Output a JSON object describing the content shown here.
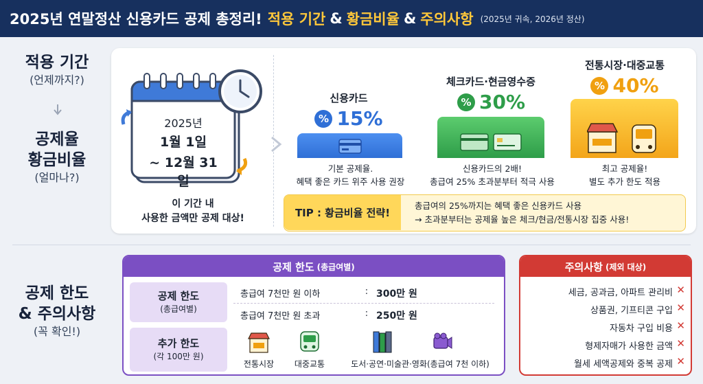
{
  "header": {
    "title": "2025년 연말정산 신용카드 공제 총정리!",
    "highlight_1": "적용 기간",
    "amp": "&",
    "highlight_2": "황금비율",
    "highlight_3": "주의사항",
    "subtitle": "(2025년 귀속, 2026년 정산)"
  },
  "left_labels": {
    "period_title": "적용 기간",
    "period_sub": "(언제까지?)",
    "rate_title_1": "공제율",
    "rate_title_2": "황금비율",
    "rate_sub": "(얼마나?)",
    "limit_title_1": "공제 한도",
    "limit_title_2": "& 주의사항",
    "limit_sub": "(꼭 확인!)"
  },
  "period": {
    "year": "2025년",
    "start": "1월 1일",
    "end": "~ 12월 31일",
    "note_1": "이 기간 내",
    "note_2": "사용한 금액만 공제 대상!"
  },
  "rates": [
    {
      "title": "신용카드",
      "badge": "%",
      "value": "15%",
      "color": "#2f6fd6",
      "desc_1": "기본 공제율.",
      "desc_2": "혜택 좋은 카드 위주 사용 권장"
    },
    {
      "title": "체크카드·현금영수증",
      "badge": "%",
      "value": "30%",
      "color": "#2e9d49",
      "desc_1": "신용카드의 2배!",
      "desc_2": "총급여 25% 초과분부터 적극 사용"
    },
    {
      "title": "전통시장·대중교통",
      "badge": "%",
      "value": "40%",
      "color": "#f0a010",
      "desc_1": "최고 공제율!",
      "desc_2": "별도 추가 한도 적용"
    }
  ],
  "tip": {
    "label": "TIP : 황금비율 전략!",
    "line_1": "총급여의 25%까지는 혜택 좋은 신용카드 사용",
    "line_2": "→ 초과분부터는 공제율 높은 체크/현금/전통시장 집중 사용!"
  },
  "limit": {
    "header": "공제 한도",
    "header_small": "(총급여별)",
    "tag_1_title": "공제 한도",
    "tag_1_sub": "(총급여별)",
    "tag_2_title": "추가 한도",
    "tag_2_sub": "(각 100만 원)",
    "rows": [
      {
        "cond": "총급여 7천만 원 이하",
        "colon": ":",
        "amount": "300만 원"
      },
      {
        "cond": "총급여 7천만 원 초과",
        "colon": ":",
        "amount": "250만 원"
      }
    ],
    "extras": [
      {
        "label": "전통시장",
        "icon": "market-icon"
      },
      {
        "label": "대중교통",
        "icon": "bus-icon"
      },
      {
        "label": "도서·공연·미술관·영화(총급여 7천 이하)",
        "icon": "books-camera-icon"
      }
    ]
  },
  "caution": {
    "header": "주의사항",
    "header_small": "(제외 대상)",
    "items": [
      "세금, 공과금, 아파트 관리비",
      "상품권, 기프티콘 구입",
      "자동차 구입 비용",
      "형제자매가 사용한 금액",
      "월세 세액공제와 중복 공제"
    ],
    "mark": "✕"
  }
}
